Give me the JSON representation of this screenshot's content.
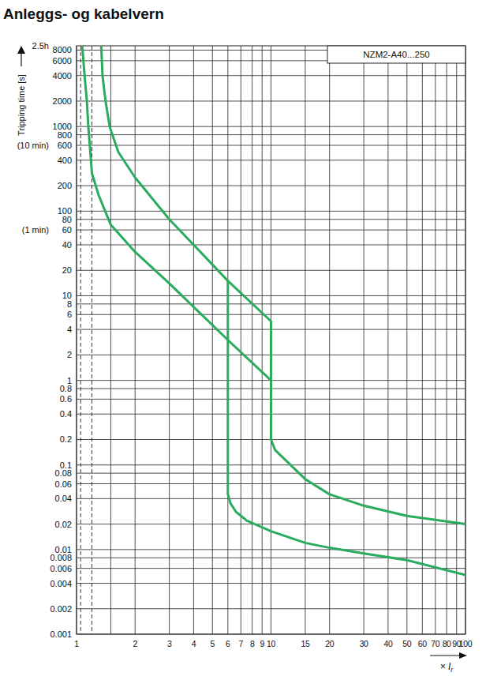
{
  "chart_data": {
    "type": "line",
    "title": "Anleggs- og kabelvern",
    "y_label": "Tripping time [s]",
    "x_label": "× I",
    "x_label_subscript": "r",
    "box_label": "NZM2-A40...250",
    "log": true,
    "grid": true,
    "xlim": [
      1,
      100
    ],
    "ylim": [
      0.001,
      9000
    ],
    "xticks": [
      1,
      2,
      3,
      4,
      5,
      6,
      7,
      8,
      9,
      10,
      15,
      20,
      30,
      40,
      50,
      60,
      70,
      80,
      90,
      100
    ],
    "x_minor_grid": [
      1.5
    ],
    "yticks": [
      8000,
      6000,
      4000,
      2000,
      1000,
      800,
      600,
      400,
      200,
      100,
      80,
      60,
      40,
      20,
      10,
      8,
      6,
      4,
      2,
      1,
      0.8,
      0.6,
      0.4,
      0.2,
      0.1,
      0.08,
      0.06,
      0.04,
      0.02,
      0.01,
      0.008,
      0.006,
      0.004,
      0.002,
      0.001
    ],
    "annotations": [
      {
        "text": "2.5h",
        "value": 9000
      },
      {
        "text": "(10 min)",
        "value": 600
      },
      {
        "text": "(1 min)",
        "value": 60
      }
    ],
    "reference_lines": {
      "x": [
        1.05,
        1.2
      ],
      "line_style": "dashed"
    },
    "series": [
      {
        "color": "#2bab5e",
        "x": [
          1.34,
          1.36,
          1.41,
          1.48,
          1.64,
          2.0,
          3,
          4,
          6,
          10,
          10,
          10.5,
          15,
          20,
          30,
          50,
          100
        ],
        "values": [
          9000,
          4000,
          2000,
          1000,
          500,
          250,
          80,
          40,
          15,
          5,
          0.2,
          0.15,
          0.068,
          0.045,
          0.033,
          0.025,
          0.02
        ]
      },
      {
        "color": "#2bab5e",
        "x": [
          1.07,
          1.1,
          1.13,
          1.15,
          1.2,
          1.3,
          1.5,
          2,
          3,
          6,
          10
        ],
        "values": [
          9000,
          4000,
          2000,
          1000,
          280,
          154,
          69,
          33,
          14,
          3,
          1
        ]
      },
      {
        "color": "#2bab5e",
        "x": [
          6,
          6,
          6.2,
          6.6,
          7.5,
          10,
          15,
          20,
          30,
          50,
          100
        ],
        "values": [
          15,
          0.045,
          0.035,
          0.028,
          0.022,
          0.0165,
          0.012,
          0.0105,
          0.009,
          0.0075,
          0.005
        ]
      }
    ]
  }
}
